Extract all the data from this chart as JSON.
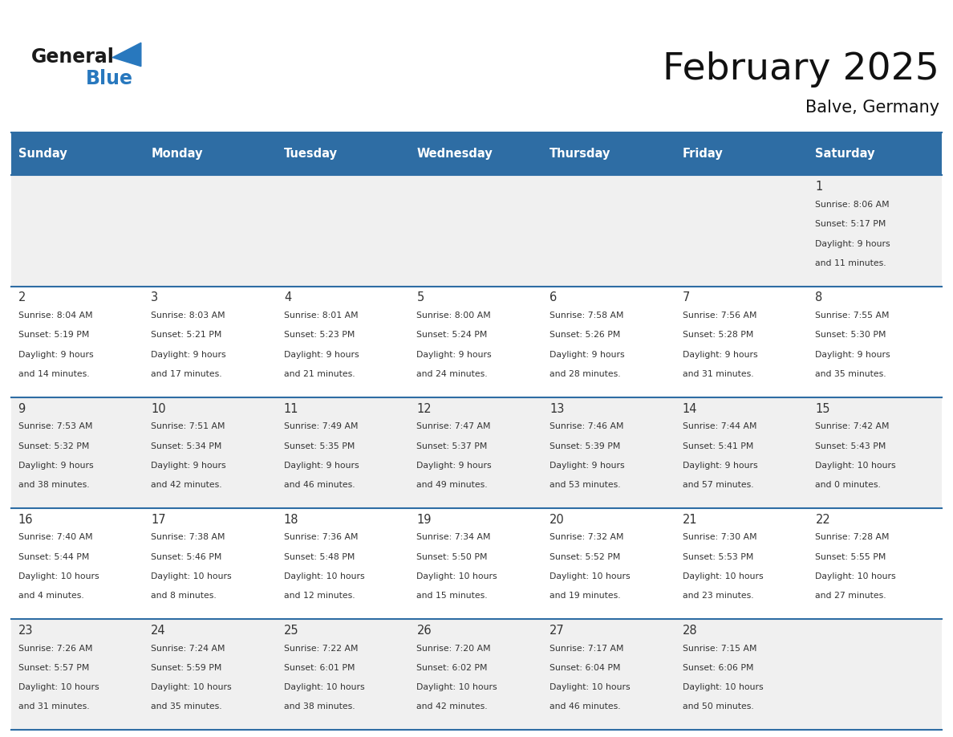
{
  "title": "February 2025",
  "subtitle": "Balve, Germany",
  "days_of_week": [
    "Sunday",
    "Monday",
    "Tuesday",
    "Wednesday",
    "Thursday",
    "Friday",
    "Saturday"
  ],
  "header_bg": "#2E6DA4",
  "header_text": "#FFFFFF",
  "row_bg_light": "#F0F0F0",
  "row_bg_white": "#FFFFFF",
  "separator_color": "#2E6DA4",
  "text_color": "#333333",
  "logo_black": "#1a1a1a",
  "logo_blue": "#2878BE",
  "calendar": [
    [
      null,
      null,
      null,
      null,
      null,
      null,
      1
    ],
    [
      2,
      3,
      4,
      5,
      6,
      7,
      8
    ],
    [
      9,
      10,
      11,
      12,
      13,
      14,
      15
    ],
    [
      16,
      17,
      18,
      19,
      20,
      21,
      22
    ],
    [
      23,
      24,
      25,
      26,
      27,
      28,
      null
    ]
  ],
  "day_data": {
    "1": {
      "sunrise": "8:06 AM",
      "sunset": "5:17 PM",
      "daylight_h": "9 hours",
      "daylight_m": "and 11 minutes."
    },
    "2": {
      "sunrise": "8:04 AM",
      "sunset": "5:19 PM",
      "daylight_h": "9 hours",
      "daylight_m": "and 14 minutes."
    },
    "3": {
      "sunrise": "8:03 AM",
      "sunset": "5:21 PM",
      "daylight_h": "9 hours",
      "daylight_m": "and 17 minutes."
    },
    "4": {
      "sunrise": "8:01 AM",
      "sunset": "5:23 PM",
      "daylight_h": "9 hours",
      "daylight_m": "and 21 minutes."
    },
    "5": {
      "sunrise": "8:00 AM",
      "sunset": "5:24 PM",
      "daylight_h": "9 hours",
      "daylight_m": "and 24 minutes."
    },
    "6": {
      "sunrise": "7:58 AM",
      "sunset": "5:26 PM",
      "daylight_h": "9 hours",
      "daylight_m": "and 28 minutes."
    },
    "7": {
      "sunrise": "7:56 AM",
      "sunset": "5:28 PM",
      "daylight_h": "9 hours",
      "daylight_m": "and 31 minutes."
    },
    "8": {
      "sunrise": "7:55 AM",
      "sunset": "5:30 PM",
      "daylight_h": "9 hours",
      "daylight_m": "and 35 minutes."
    },
    "9": {
      "sunrise": "7:53 AM",
      "sunset": "5:32 PM",
      "daylight_h": "9 hours",
      "daylight_m": "and 38 minutes."
    },
    "10": {
      "sunrise": "7:51 AM",
      "sunset": "5:34 PM",
      "daylight_h": "9 hours",
      "daylight_m": "and 42 minutes."
    },
    "11": {
      "sunrise": "7:49 AM",
      "sunset": "5:35 PM",
      "daylight_h": "9 hours",
      "daylight_m": "and 46 minutes."
    },
    "12": {
      "sunrise": "7:47 AM",
      "sunset": "5:37 PM",
      "daylight_h": "9 hours",
      "daylight_m": "and 49 minutes."
    },
    "13": {
      "sunrise": "7:46 AM",
      "sunset": "5:39 PM",
      "daylight_h": "9 hours",
      "daylight_m": "and 53 minutes."
    },
    "14": {
      "sunrise": "7:44 AM",
      "sunset": "5:41 PM",
      "daylight_h": "9 hours",
      "daylight_m": "and 57 minutes."
    },
    "15": {
      "sunrise": "7:42 AM",
      "sunset": "5:43 PM",
      "daylight_h": "10 hours",
      "daylight_m": "and 0 minutes."
    },
    "16": {
      "sunrise": "7:40 AM",
      "sunset": "5:44 PM",
      "daylight_h": "10 hours",
      "daylight_m": "and 4 minutes."
    },
    "17": {
      "sunrise": "7:38 AM",
      "sunset": "5:46 PM",
      "daylight_h": "10 hours",
      "daylight_m": "and 8 minutes."
    },
    "18": {
      "sunrise": "7:36 AM",
      "sunset": "5:48 PM",
      "daylight_h": "10 hours",
      "daylight_m": "and 12 minutes."
    },
    "19": {
      "sunrise": "7:34 AM",
      "sunset": "5:50 PM",
      "daylight_h": "10 hours",
      "daylight_m": "and 15 minutes."
    },
    "20": {
      "sunrise": "7:32 AM",
      "sunset": "5:52 PM",
      "daylight_h": "10 hours",
      "daylight_m": "and 19 minutes."
    },
    "21": {
      "sunrise": "7:30 AM",
      "sunset": "5:53 PM",
      "daylight_h": "10 hours",
      "daylight_m": "and 23 minutes."
    },
    "22": {
      "sunrise": "7:28 AM",
      "sunset": "5:55 PM",
      "daylight_h": "10 hours",
      "daylight_m": "and 27 minutes."
    },
    "23": {
      "sunrise": "7:26 AM",
      "sunset": "5:57 PM",
      "daylight_h": "10 hours",
      "daylight_m": "and 31 minutes."
    },
    "24": {
      "sunrise": "7:24 AM",
      "sunset": "5:59 PM",
      "daylight_h": "10 hours",
      "daylight_m": "and 35 minutes."
    },
    "25": {
      "sunrise": "7:22 AM",
      "sunset": "6:01 PM",
      "daylight_h": "10 hours",
      "daylight_m": "and 38 minutes."
    },
    "26": {
      "sunrise": "7:20 AM",
      "sunset": "6:02 PM",
      "daylight_h": "10 hours",
      "daylight_m": "and 42 minutes."
    },
    "27": {
      "sunrise": "7:17 AM",
      "sunset": "6:04 PM",
      "daylight_h": "10 hours",
      "daylight_m": "and 46 minutes."
    },
    "28": {
      "sunrise": "7:15 AM",
      "sunset": "6:06 PM",
      "daylight_h": "10 hours",
      "daylight_m": "and 50 minutes."
    }
  }
}
